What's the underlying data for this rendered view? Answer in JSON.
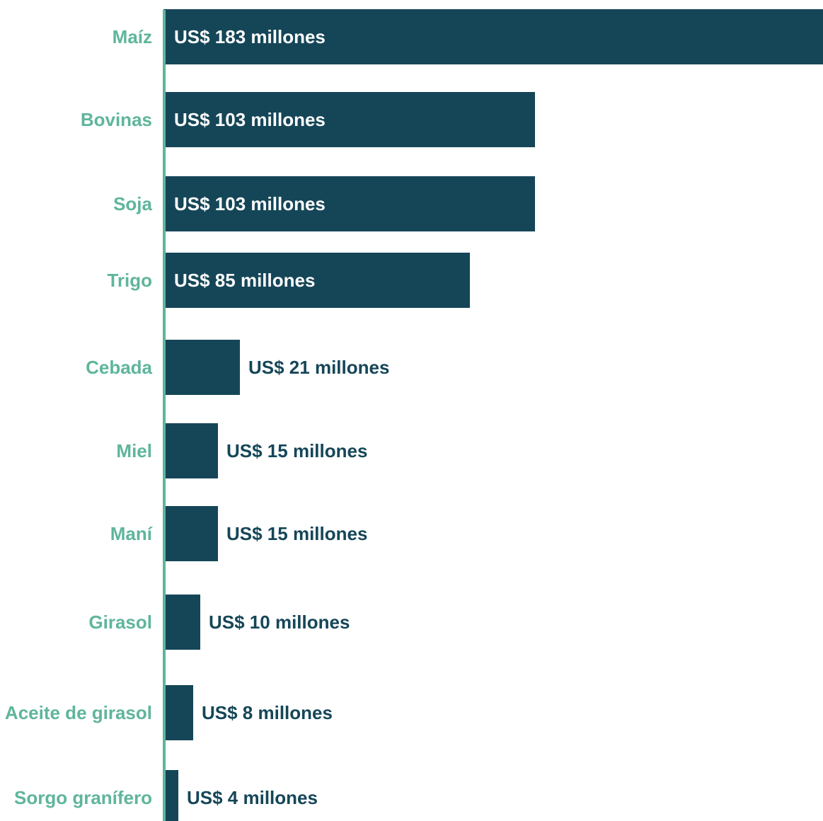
{
  "colors": {
    "bar": "#154658",
    "category_label": "#5fb59c",
    "axis_line": "#5fb59c",
    "value_inside": "#ffffff",
    "value_outside": "#154658"
  },
  "chart_data": {
    "type": "bar",
    "orientation": "horizontal",
    "categories": [
      "Maíz",
      "Bovinas",
      "Soja",
      "Trigo",
      "Cebada",
      "Miel",
      "Maní",
      "Girasol",
      "Aceite de girasol",
      "Sorgo granífero"
    ],
    "values": [
      183,
      103,
      103,
      85,
      21,
      15,
      15,
      10,
      8,
      4
    ],
    "value_labels": [
      "US$ 183 millones",
      "US$ 103 millones",
      "US$ 103 millones",
      "US$ 85 millones",
      "US$ 21 millones",
      "US$ 15 millones",
      "US$ 15 millones",
      "US$ 10 millones",
      "US$ 8 millones",
      "US$ 4 millones"
    ],
    "title": "",
    "xlabel": "",
    "ylabel": "",
    "xlim": [
      0,
      183
    ],
    "grid": false,
    "legend": "none"
  }
}
